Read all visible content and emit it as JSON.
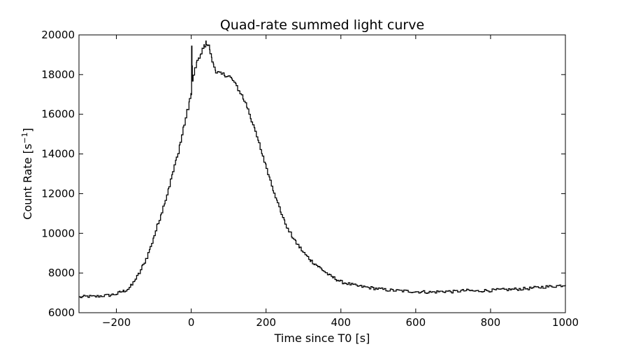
{
  "chart_data": {
    "type": "line",
    "title": "Quad-rate summed light curve",
    "xlabel": "Time since T0 [s]",
    "ylabel_main": "Count Rate [s",
    "ylabel_sup": "−1",
    "ylabel_end": "]",
    "xlim": [
      -300,
      1000
    ],
    "ylim": [
      6000,
      20000
    ],
    "xticks": [
      -200,
      0,
      200,
      400,
      600,
      800,
      1000
    ],
    "xtick_labels": [
      "−200",
      "0",
      "200",
      "400",
      "600",
      "800",
      "1000"
    ],
    "yticks": [
      6000,
      8000,
      10000,
      12000,
      14000,
      16000,
      18000,
      20000
    ],
    "ytick_labels": [
      "6000",
      "8000",
      "10000",
      "12000",
      "14000",
      "16000",
      "18000",
      "20000"
    ],
    "grid": false,
    "series": [
      {
        "style": "steps",
        "color": "#000000",
        "x": [
          -300,
          -280,
          -260,
          -240,
          -220,
          -200,
          -190,
          -180,
          -170,
          -160,
          -150,
          -140,
          -130,
          -120,
          -110,
          -100,
          -90,
          -80,
          -70,
          -60,
          -50,
          -40,
          -30,
          -20,
          -10,
          -5,
          0,
          1,
          2,
          3,
          5,
          10,
          15,
          20,
          25,
          30,
          35,
          40,
          45,
          50,
          55,
          60,
          65,
          70,
          75,
          80,
          90,
          100,
          110,
          120,
          130,
          140,
          150,
          160,
          170,
          180,
          190,
          200,
          210,
          220,
          230,
          240,
          250,
          260,
          270,
          280,
          290,
          300,
          310,
          320,
          330,
          340,
          350,
          360,
          370,
          380,
          390,
          400,
          420,
          440,
          460,
          480,
          500,
          520,
          540,
          560,
          580,
          600,
          620,
          640,
          660,
          680,
          700,
          720,
          740,
          760,
          780,
          800,
          820,
          840,
          860,
          880,
          900,
          920,
          940,
          960,
          980,
          1000
        ],
        "y": [
          6780,
          6820,
          6810,
          6850,
          6880,
          6950,
          7050,
          7100,
          7200,
          7400,
          7700,
          8000,
          8400,
          8800,
          9300,
          9900,
          10500,
          11100,
          11700,
          12400,
          13100,
          13800,
          14600,
          15500,
          16300,
          16700,
          17100,
          19400,
          18400,
          17700,
          17900,
          18400,
          18600,
          18900,
          19000,
          19300,
          19500,
          19600,
          19500,
          19100,
          18700,
          18400,
          18200,
          18100,
          18050,
          18000,
          18000,
          17900,
          17700,
          17400,
          17100,
          16700,
          16300,
          15700,
          15100,
          14500,
          13900,
          13300,
          12700,
          12100,
          11500,
          11000,
          10500,
          10100,
          9800,
          9500,
          9250,
          9000,
          8800,
          8600,
          8450,
          8300,
          8150,
          8000,
          7850,
          7750,
          7650,
          7550,
          7450,
          7350,
          7300,
          7250,
          7200,
          7150,
          7120,
          7100,
          7080,
          7060,
          7050,
          7030,
          7060,
          7080,
          7060,
          7100,
          7120,
          7080,
          7120,
          7120,
          7150,
          7160,
          7180,
          7200,
          7220,
          7260,
          7300,
          7320,
          7360,
          7400
        ]
      }
    ]
  }
}
